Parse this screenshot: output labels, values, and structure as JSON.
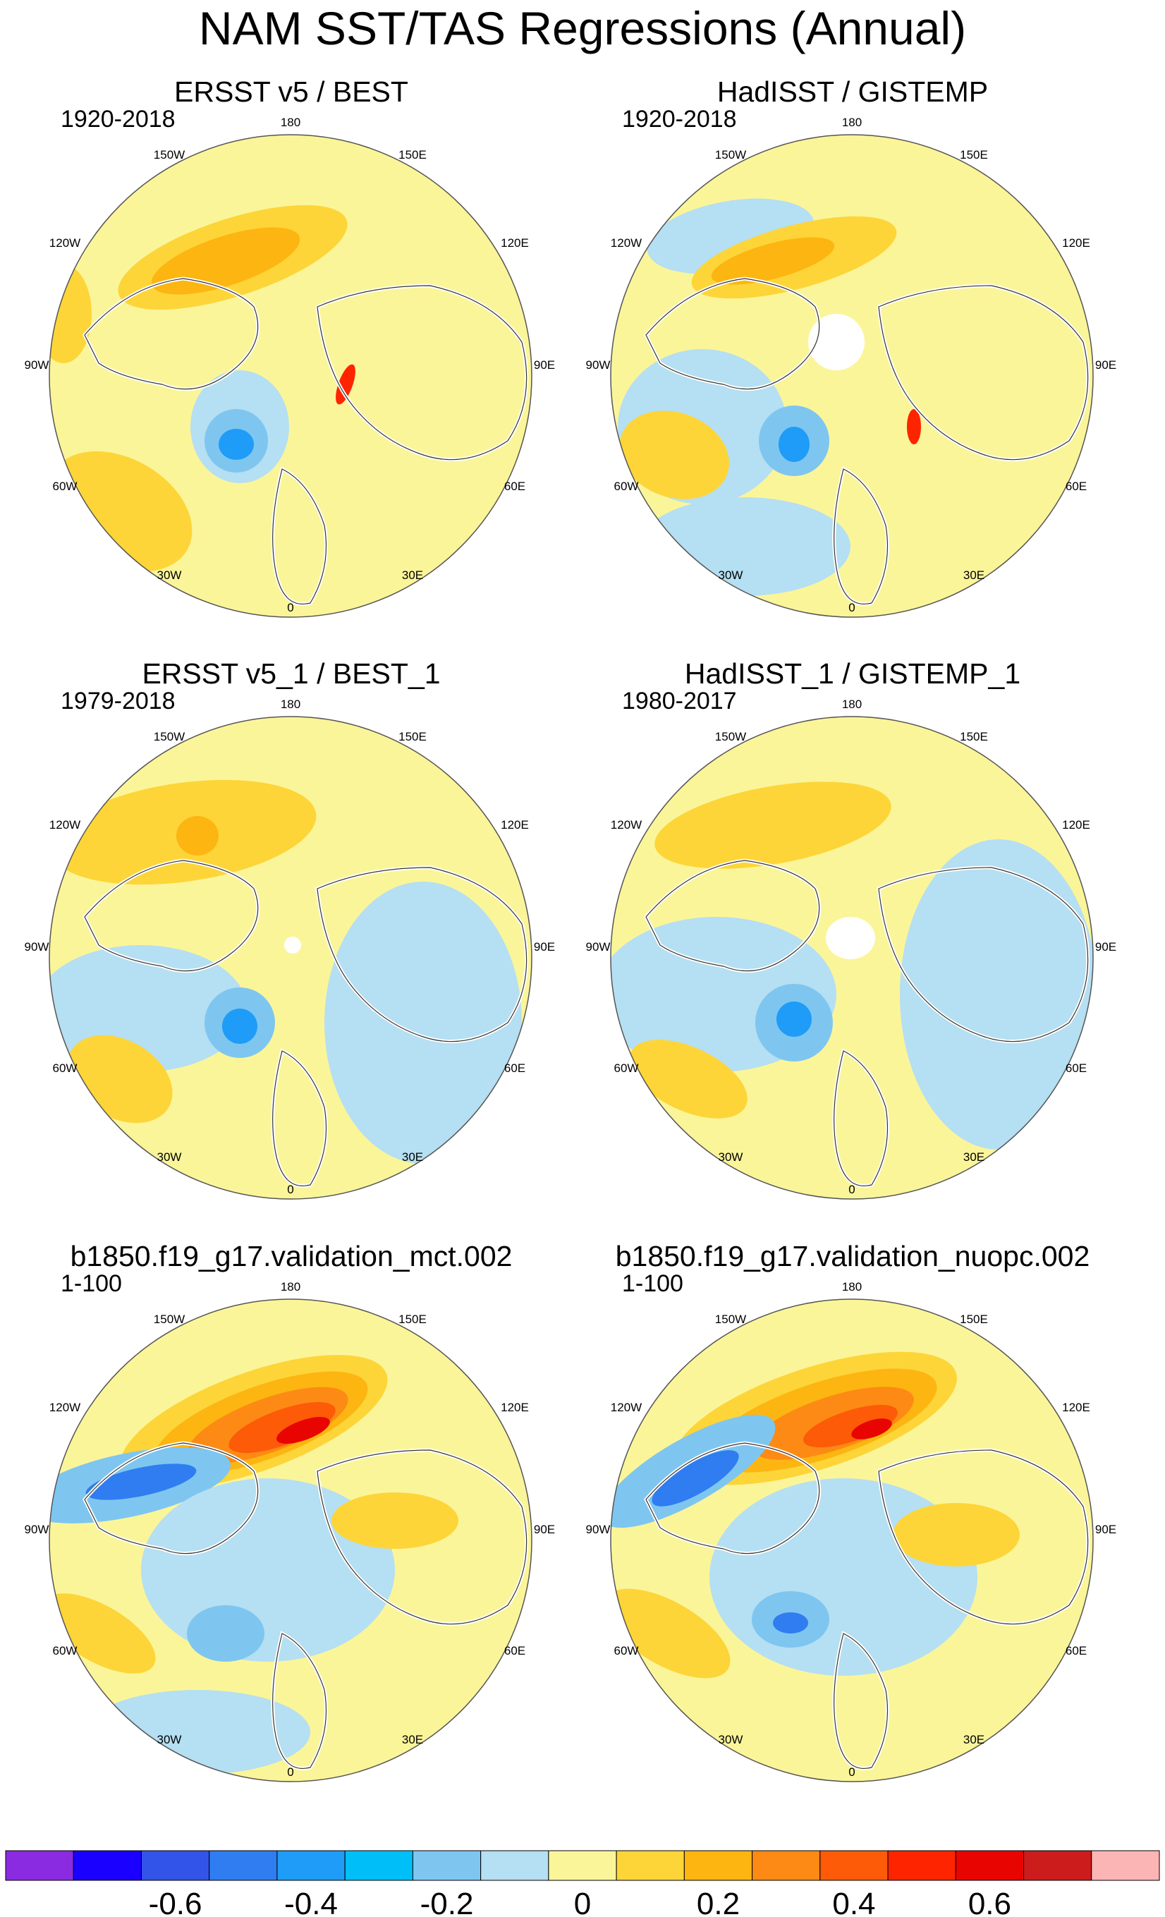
{
  "title": "NAM SST/TAS Regressions (Annual)",
  "panels": [
    {
      "title": "ERSST v5 / BEST",
      "period": "1920-2018"
    },
    {
      "title": "HadISST / GISTEMP",
      "period": "1920-2018"
    },
    {
      "title": "ERSST v5_1 / BEST_1",
      "period": "1979-2018"
    },
    {
      "title": "HadISST_1 / GISTEMP_1",
      "period": "1980-2017"
    },
    {
      "title": "b1850.f19_g17.validation_mct.002",
      "period": "1-100"
    },
    {
      "title": "b1850.f19_g17.validation_nuopc.002",
      "period": "1-100"
    }
  ],
  "longitude_labels": {
    "lon_180": "180",
    "lon_150w": "150W",
    "lon_150e": "150E",
    "lon_120w": "120W",
    "lon_120e": "120E",
    "lon_90w": "90W",
    "lon_90e": "90E",
    "lon_60w": "60W",
    "lon_60e": "60E",
    "lon_30w": "30W",
    "lon_30e": "30E",
    "lon_0": "0"
  },
  "colorbar": {
    "colors": [
      "#8a2be2",
      "#1a00ff",
      "#3254e8",
      "#2f7df0",
      "#1e9cf7",
      "#00bff8",
      "#7ec6f0",
      "#b5dff2",
      "#fbf59a",
      "#fdd538",
      "#fdb511",
      "#fd8a14",
      "#fd5b07",
      "#fe2400",
      "#e80400",
      "#cc1c1c",
      "#fbb5b4"
    ],
    "tick_labels": [
      "-0.6",
      "-0.4",
      "-0.2",
      "0",
      "0.2",
      "0.4",
      "0.6"
    ],
    "tick_values": [
      -0.6,
      -0.4,
      -0.2,
      0,
      0.2,
      0.4,
      0.6
    ],
    "levels_min": -0.8,
    "levels_max": 0.8,
    "level_step": 0.1
  },
  "colors": {
    "neutral_pos": "#fbf59a",
    "neutral_neg": "#b5dff2",
    "land_outline": "#ffffff",
    "coast": "#333333"
  }
}
